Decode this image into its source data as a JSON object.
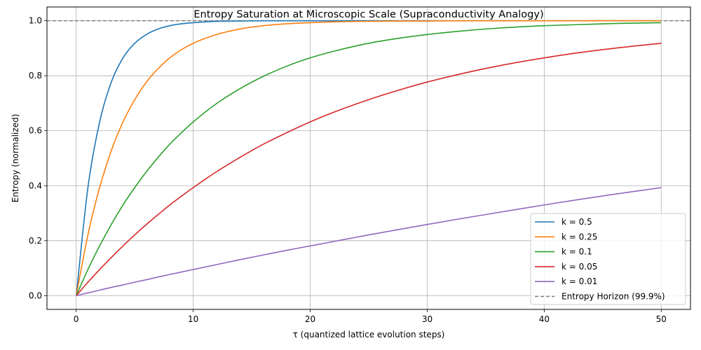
{
  "chart_data": {
    "type": "line",
    "title": "Entropy Saturation at Microscopic Scale (Supraconductivity Analogy)",
    "xlabel": "τ (quantized lattice evolution steps)",
    "ylabel": "Entropy (normalized)",
    "xlim": [
      -2.5,
      52.5
    ],
    "ylim": [
      -0.05,
      1.05
    ],
    "x_ticks": [
      0,
      10,
      20,
      30,
      40,
      50
    ],
    "y_ticks": [
      0.0,
      0.2,
      0.4,
      0.6,
      0.8,
      1.0
    ],
    "x_tick_labels": [
      "0",
      "10",
      "20",
      "30",
      "40",
      "50"
    ],
    "y_tick_labels": [
      "0.0",
      "0.2",
      "0.4",
      "0.6",
      "0.8",
      "1.0"
    ],
    "grid": true,
    "legend_position": "lower-right",
    "x": [
      0,
      1,
      2,
      3,
      4,
      5,
      6,
      7,
      8,
      9,
      10,
      12,
      14,
      16,
      18,
      20,
      22,
      25,
      28,
      30,
      33,
      36,
      40,
      43,
      46,
      50
    ],
    "series": [
      {
        "name": "k = 0.5",
        "color": "#1f77b4",
        "style": "solid",
        "values": [
          0.0,
          0.393,
          0.632,
          0.777,
          0.865,
          0.918,
          0.95,
          0.97,
          0.982,
          0.989,
          0.993,
          0.998,
          0.999,
          1.0,
          1.0,
          1.0,
          1.0,
          1.0,
          1.0,
          1.0,
          1.0,
          1.0,
          1.0,
          1.0,
          1.0,
          1.0
        ]
      },
      {
        "name": "k = 0.25",
        "color": "#ff7f0e",
        "style": "solid",
        "values": [
          0.0,
          0.221,
          0.393,
          0.528,
          0.632,
          0.713,
          0.777,
          0.826,
          0.865,
          0.895,
          0.918,
          0.95,
          0.97,
          0.982,
          0.989,
          0.993,
          0.996,
          0.998,
          0.999,
          0.999,
          1.0,
          1.0,
          1.0,
          1.0,
          1.0,
          1.0
        ]
      },
      {
        "name": "k = 0.1",
        "color": "#2ca02c",
        "style": "solid",
        "values": [
          0.0,
          0.095,
          0.181,
          0.259,
          0.33,
          0.393,
          0.451,
          0.503,
          0.551,
          0.593,
          0.632,
          0.699,
          0.753,
          0.798,
          0.835,
          0.865,
          0.889,
          0.918,
          0.939,
          0.95,
          0.963,
          0.973,
          0.982,
          0.986,
          0.99,
          0.993
        ]
      },
      {
        "name": "k = 0.05",
        "color": "#d62728",
        "style": "solid",
        "values": [
          0.0,
          0.049,
          0.095,
          0.139,
          0.181,
          0.221,
          0.259,
          0.295,
          0.33,
          0.362,
          0.393,
          0.451,
          0.503,
          0.551,
          0.593,
          0.632,
          0.667,
          0.713,
          0.753,
          0.777,
          0.808,
          0.835,
          0.865,
          0.884,
          0.9,
          0.918
        ]
      },
      {
        "name": "k = 0.01",
        "color": "#9467bd",
        "style": "solid",
        "values": [
          0.0,
          0.01,
          0.02,
          0.03,
          0.039,
          0.049,
          0.058,
          0.068,
          0.077,
          0.086,
          0.095,
          0.113,
          0.131,
          0.148,
          0.165,
          0.181,
          0.197,
          0.221,
          0.244,
          0.259,
          0.281,
          0.302,
          0.33,
          0.35,
          0.369,
          0.393
        ]
      }
    ],
    "reference_lines": [
      {
        "name": "Entropy Horizon (99.9%)",
        "y": 1.0,
        "color": "#808080",
        "style": "dashed"
      }
    ]
  }
}
